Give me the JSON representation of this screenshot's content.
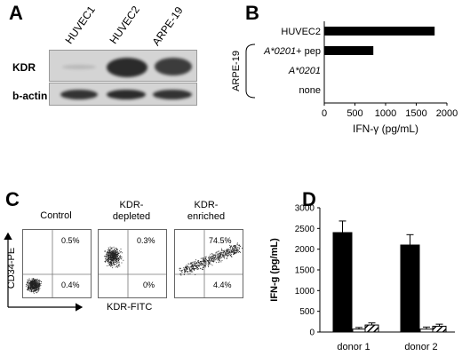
{
  "panels": {
    "A": {
      "letter": "A",
      "lanes": [
        "HUVEC1",
        "HUVEC2",
        "ARPE-19"
      ],
      "rows": [
        "KDR",
        "b-actin"
      ],
      "band_intensity": {
        "KDR": [
          0.15,
          0.95,
          0.85
        ],
        "b-actin": [
          0.9,
          0.95,
          0.9
        ]
      }
    },
    "B": {
      "letter": "B",
      "group_label": "ARPE-19"
    },
    "C": {
      "letter": "C",
      "plots": [
        {
          "title_line1": "Control",
          "title_line2": "",
          "q_ul": "",
          "q_ur": "0.5%",
          "q_lr": "0.4%"
        },
        {
          "title_line1": "KDR-",
          "title_line2": "depleted",
          "q_ul": "",
          "q_ur": "0.3%",
          "q_lr": "0%"
        },
        {
          "title_line1": "KDR-",
          "title_line2": "enriched",
          "q_ul": "",
          "q_ur": "74.5%",
          "q_lr": "4.4%"
        }
      ],
      "y_axis": "CD34-PE",
      "x_axis": "KDR-FITC"
    },
    "D": {
      "letter": "D"
    }
  },
  "chart_data": [
    {
      "type": "bar",
      "orientation": "horizontal",
      "categories": [
        "HUVEC2",
        "A*0201+ pep",
        "A*0201",
        "none"
      ],
      "values": [
        1800,
        800,
        0,
        0
      ],
      "xlabel": "IFN-γ (pg/mL)",
      "xlim": [
        0,
        2000
      ],
      "xticks": [
        0,
        500,
        1000,
        1500,
        2000
      ],
      "color": "#000000"
    },
    {
      "type": "bar",
      "categories": [
        "donor 1",
        "donor 2"
      ],
      "series": [
        {
          "values": [
            2400,
            2100
          ],
          "errors": [
            280,
            250
          ],
          "fill": "solid-black"
        },
        {
          "values": [
            70,
            70
          ],
          "errors": [
            40,
            50
          ],
          "fill": "white"
        },
        {
          "values": [
            170,
            140
          ],
          "errors": [
            50,
            50
          ],
          "fill": "hatched"
        }
      ],
      "ylabel": "IFN-g (pg/mL)",
      "ylim": [
        0,
        3000
      ],
      "yticks": [
        0,
        500,
        1000,
        1500,
        2000,
        2500,
        3000
      ]
    }
  ]
}
